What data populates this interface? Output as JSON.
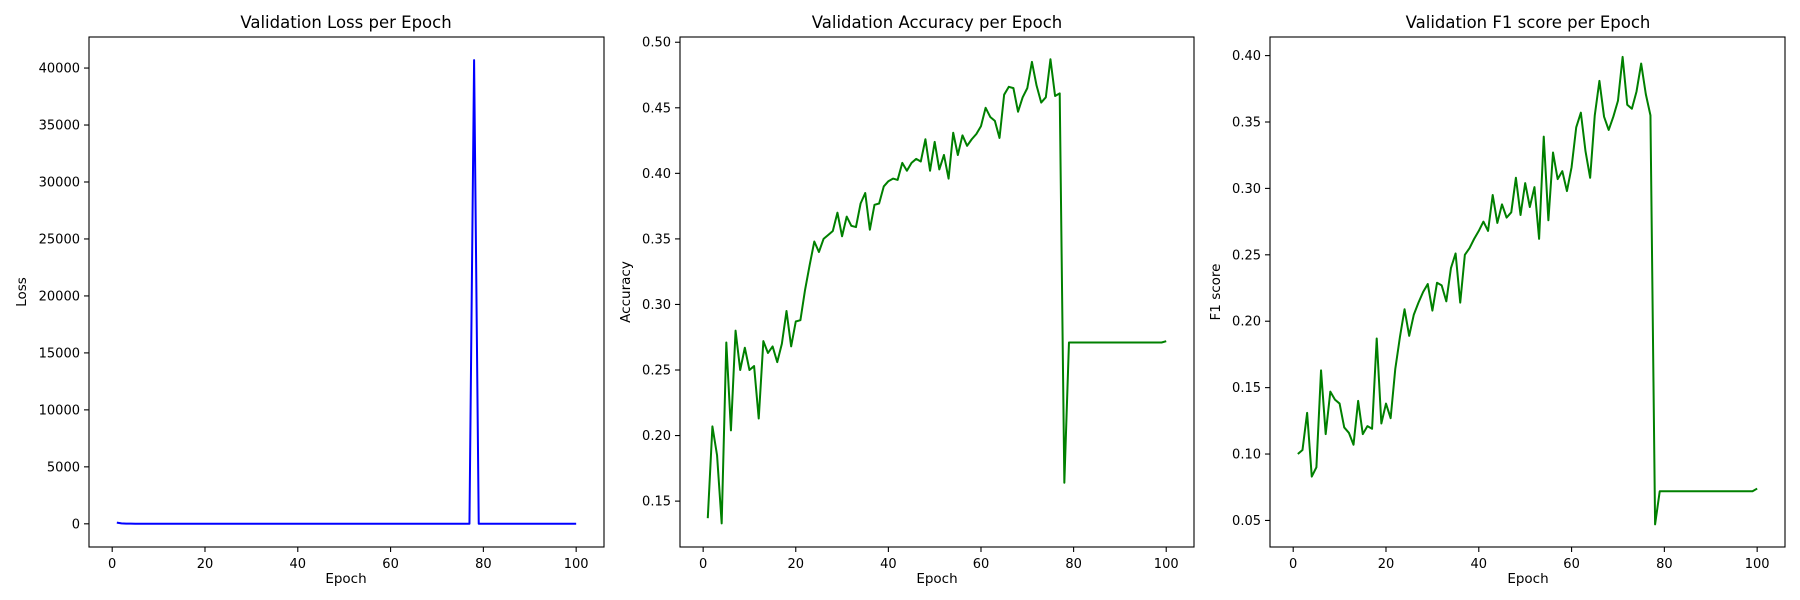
{
  "colors": {
    "loss": "#0000ff",
    "metric": "#008000",
    "axis": "#000000"
  },
  "chart_data": [
    {
      "type": "line",
      "title": "Validation Loss per Epoch",
      "xlabel": "Epoch",
      "ylabel": "Loss",
      "xlim": [
        -5,
        106
      ],
      "ylim": [
        -2035,
        42725
      ],
      "xticks": [
        0,
        20,
        40,
        60,
        80,
        100
      ],
      "yticks": [
        0,
        5000,
        10000,
        15000,
        20000,
        25000,
        30000,
        35000,
        40000
      ],
      "color": "#0000ff",
      "x": [
        1,
        2,
        3,
        4,
        5,
        6,
        7,
        8,
        9,
        10,
        11,
        12,
        13,
        14,
        15,
        16,
        17,
        18,
        19,
        20,
        21,
        22,
        23,
        24,
        25,
        26,
        27,
        28,
        29,
        30,
        31,
        32,
        33,
        34,
        35,
        36,
        37,
        38,
        39,
        40,
        41,
        42,
        43,
        44,
        45,
        46,
        47,
        48,
        49,
        50,
        51,
        52,
        53,
        54,
        55,
        56,
        57,
        58,
        59,
        60,
        61,
        62,
        63,
        64,
        65,
        66,
        67,
        68,
        69,
        70,
        71,
        72,
        73,
        74,
        75,
        76,
        77,
        78,
        79,
        80,
        81,
        82,
        83,
        84,
        85,
        86,
        87,
        88,
        89,
        90,
        91,
        92,
        93,
        94,
        95,
        96,
        97,
        98,
        99,
        100
      ],
      "y": [
        100,
        40,
        20,
        15,
        10,
        10,
        8,
        8,
        6,
        6,
        5,
        5,
        5,
        5,
        5,
        5,
        5,
        5,
        5,
        5,
        5,
        5,
        5,
        5,
        5,
        5,
        5,
        5,
        5,
        5,
        5,
        5,
        5,
        5,
        5,
        5,
        5,
        5,
        5,
        5,
        5,
        5,
        5,
        5,
        5,
        5,
        5,
        5,
        5,
        5,
        5,
        5,
        5,
        5,
        5,
        5,
        5,
        5,
        5,
        5,
        5,
        5,
        5,
        5,
        5,
        5,
        5,
        5,
        5,
        5,
        5,
        5,
        5,
        5,
        5,
        5,
        5,
        40700,
        5,
        5,
        5,
        5,
        5,
        5,
        5,
        5,
        5,
        5,
        5,
        5,
        5,
        5,
        5,
        5,
        5,
        5,
        5,
        5,
        5,
        5
      ]
    },
    {
      "type": "line",
      "title": "Validation Accuracy per Epoch",
      "xlabel": "Epoch",
      "ylabel": "Accuracy",
      "xlim": [
        -5,
        106
      ],
      "ylim": [
        0.115,
        0.504
      ],
      "xticks": [
        0,
        20,
        40,
        60,
        80,
        100
      ],
      "yticks": [
        0.15,
        0.2,
        0.25,
        0.3,
        0.35,
        0.4,
        0.45,
        0.5
      ],
      "ytick_labels": [
        "0.15",
        "0.20",
        "0.25",
        "0.30",
        "0.35",
        "0.40",
        "0.45",
        "0.50"
      ],
      "color": "#008000",
      "x": [
        1,
        2,
        3,
        4,
        5,
        6,
        7,
        8,
        9,
        10,
        11,
        12,
        13,
        14,
        15,
        16,
        17,
        18,
        19,
        20,
        21,
        22,
        23,
        24,
        25,
        26,
        27,
        28,
        29,
        30,
        31,
        32,
        33,
        34,
        35,
        36,
        37,
        38,
        39,
        40,
        41,
        42,
        43,
        44,
        45,
        46,
        47,
        48,
        49,
        50,
        51,
        52,
        53,
        54,
        55,
        56,
        57,
        58,
        59,
        60,
        61,
        62,
        63,
        64,
        65,
        66,
        67,
        68,
        69,
        70,
        71,
        72,
        73,
        74,
        75,
        76,
        77,
        78,
        79,
        80,
        81,
        82,
        83,
        84,
        85,
        86,
        87,
        88,
        89,
        90,
        91,
        92,
        93,
        94,
        95,
        96,
        97,
        98,
        99,
        100
      ],
      "y": [
        0.137,
        0.207,
        0.185,
        0.133,
        0.271,
        0.204,
        0.28,
        0.25,
        0.267,
        0.25,
        0.253,
        0.213,
        0.272,
        0.263,
        0.268,
        0.256,
        0.27,
        0.295,
        0.268,
        0.287,
        0.288,
        0.311,
        0.33,
        0.348,
        0.34,
        0.35,
        0.353,
        0.356,
        0.37,
        0.352,
        0.367,
        0.36,
        0.359,
        0.377,
        0.385,
        0.357,
        0.376,
        0.377,
        0.39,
        0.394,
        0.396,
        0.395,
        0.408,
        0.402,
        0.408,
        0.411,
        0.409,
        0.426,
        0.402,
        0.424,
        0.403,
        0.414,
        0.396,
        0.431,
        0.414,
        0.429,
        0.421,
        0.426,
        0.43,
        0.436,
        0.45,
        0.443,
        0.44,
        0.427,
        0.46,
        0.466,
        0.465,
        0.447,
        0.458,
        0.465,
        0.485,
        0.467,
        0.454,
        0.458,
        0.487,
        0.459,
        0.461,
        0.164,
        0.271,
        0.271,
        0.271,
        0.271,
        0.271,
        0.271,
        0.271,
        0.271,
        0.271,
        0.271,
        0.271,
        0.271,
        0.271,
        0.271,
        0.271,
        0.271,
        0.271,
        0.271,
        0.271,
        0.271,
        0.271,
        0.272
      ]
    },
    {
      "type": "line",
      "title": "Validation F1 score per Epoch",
      "xlabel": "Epoch",
      "ylabel": "F1 score",
      "xlim": [
        -5,
        106
      ],
      "ylim": [
        0.03,
        0.414
      ],
      "xticks": [
        0,
        20,
        40,
        60,
        80,
        100
      ],
      "yticks": [
        0.05,
        0.1,
        0.15,
        0.2,
        0.25,
        0.3,
        0.35,
        0.4
      ],
      "ytick_labels": [
        "0.05",
        "0.10",
        "0.15",
        "0.20",
        "0.25",
        "0.30",
        "0.35",
        "0.40"
      ],
      "color": "#008000",
      "x": [
        1,
        2,
        3,
        4,
        5,
        6,
        7,
        8,
        9,
        10,
        11,
        12,
        13,
        14,
        15,
        16,
        17,
        18,
        19,
        20,
        21,
        22,
        23,
        24,
        25,
        26,
        27,
        28,
        29,
        30,
        31,
        32,
        33,
        34,
        35,
        36,
        37,
        38,
        39,
        40,
        41,
        42,
        43,
        44,
        45,
        46,
        47,
        48,
        49,
        50,
        51,
        52,
        53,
        54,
        55,
        56,
        57,
        58,
        59,
        60,
        61,
        62,
        63,
        64,
        65,
        66,
        67,
        68,
        69,
        70,
        71,
        72,
        73,
        74,
        75,
        76,
        77,
        78,
        79,
        80,
        81,
        82,
        83,
        84,
        85,
        86,
        87,
        88,
        89,
        90,
        91,
        92,
        93,
        94,
        95,
        96,
        97,
        98,
        99,
        100
      ],
      "y": [
        0.1,
        0.103,
        0.131,
        0.083,
        0.09,
        0.163,
        0.115,
        0.147,
        0.141,
        0.138,
        0.12,
        0.116,
        0.107,
        0.14,
        0.115,
        0.121,
        0.119,
        0.187,
        0.123,
        0.138,
        0.127,
        0.164,
        0.188,
        0.209,
        0.189,
        0.205,
        0.214,
        0.222,
        0.228,
        0.208,
        0.229,
        0.227,
        0.215,
        0.24,
        0.251,
        0.214,
        0.25,
        0.255,
        0.262,
        0.268,
        0.275,
        0.268,
        0.295,
        0.274,
        0.288,
        0.278,
        0.282,
        0.308,
        0.28,
        0.304,
        0.286,
        0.301,
        0.262,
        0.339,
        0.276,
        0.327,
        0.307,
        0.313,
        0.298,
        0.316,
        0.346,
        0.357,
        0.328,
        0.308,
        0.355,
        0.381,
        0.354,
        0.344,
        0.354,
        0.366,
        0.399,
        0.363,
        0.36,
        0.373,
        0.394,
        0.371,
        0.355,
        0.047,
        0.072,
        0.072,
        0.072,
        0.072,
        0.072,
        0.072,
        0.072,
        0.072,
        0.072,
        0.072,
        0.072,
        0.072,
        0.072,
        0.072,
        0.072,
        0.072,
        0.072,
        0.072,
        0.072,
        0.072,
        0.072,
        0.074
      ]
    }
  ]
}
